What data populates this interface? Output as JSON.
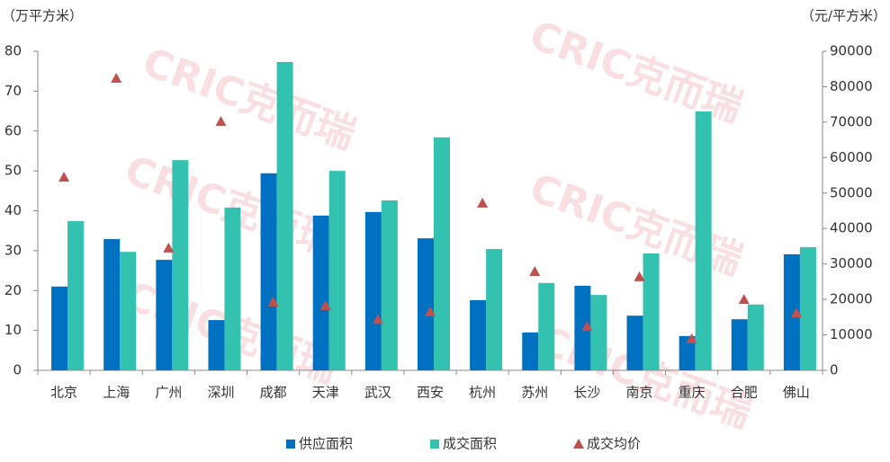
{
  "chart_data": {
    "type": "bar",
    "watermark": "CRIC克而瑞",
    "y_label": "（万平方米）",
    "y2_label": "（元/平方米）",
    "categories": [
      "北京",
      "上海",
      "广州",
      "深圳",
      "成都",
      "天津",
      "武汉",
      "西安",
      "杭州",
      "苏州",
      "长沙",
      "南京",
      "重庆",
      "合肥",
      "佛山"
    ],
    "series": [
      {
        "name": "供应面积",
        "color": "#0070c0",
        "values": [
          21.0,
          32.9,
          27.7,
          12.6,
          49.4,
          38.8,
          39.7,
          33.1,
          17.6,
          9.5,
          21.2,
          13.7,
          8.6,
          12.8,
          29.1
        ]
      },
      {
        "name": "成交面积",
        "color": "#33c1b0",
        "values": [
          37.4,
          29.7,
          52.7,
          40.8,
          77.3,
          50.0,
          42.6,
          58.4,
          30.4,
          21.9,
          18.9,
          29.3,
          64.9,
          16.5,
          30.9
        ]
      },
      {
        "name": "成交均价",
        "color": "#c0504d",
        "axis": "y2",
        "marker": "triangle",
        "values": [
          54500,
          82400,
          34500,
          70200,
          19300,
          18300,
          14400,
          16500,
          47200,
          27900,
          12400,
          26400,
          8900,
          20000,
          16200
        ]
      }
    ],
    "ylim": [
      0,
      80
    ],
    "yticks": [
      0,
      10,
      20,
      30,
      40,
      50,
      60,
      70,
      80
    ],
    "y2lim": [
      0,
      90000
    ],
    "y2ticks": [
      0,
      10000,
      20000,
      30000,
      40000,
      50000,
      60000,
      70000,
      80000,
      90000
    ],
    "legend": "bottom"
  }
}
